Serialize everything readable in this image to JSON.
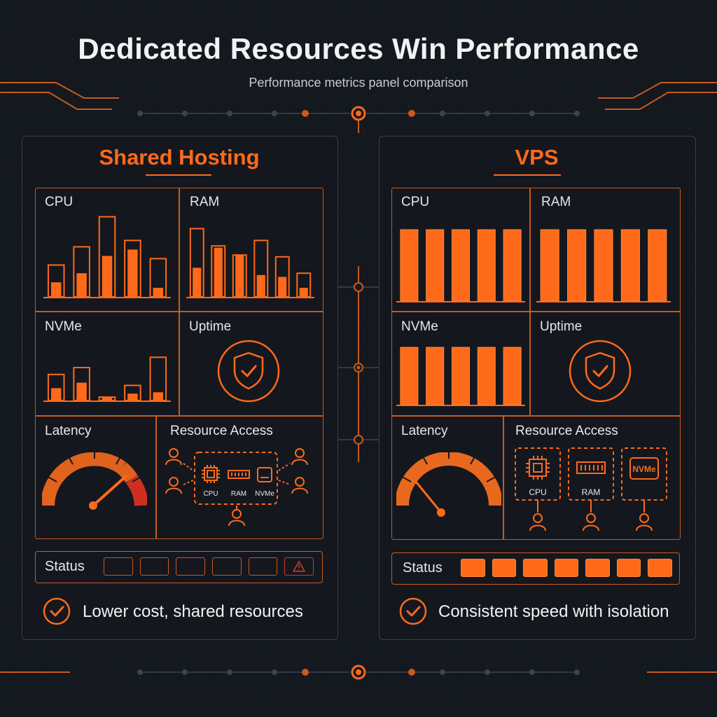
{
  "header": {
    "title": "Dedicated Resources Win Performance",
    "subtitle": "Performance metrics panel comparison"
  },
  "colors": {
    "accent": "#ff6a1a",
    "accent_dark": "#c85a1c",
    "background": "#14181f",
    "alert": "#d63a2a"
  },
  "panels": [
    {
      "title": "Shared Hosting",
      "metrics": {
        "cpu": {
          "label": "CPU",
          "frames": [
            0.35,
            0.55,
            0.88,
            0.62,
            0.42
          ],
          "fills": [
            0.16,
            0.26,
            0.45,
            0.52,
            0.1
          ]
        },
        "ram": {
          "label": "RAM",
          "frames": [
            0.75,
            0.56,
            0.46,
            0.62,
            0.44,
            0.26
          ],
          "fills": [
            0.32,
            0.54,
            0.46,
            0.24,
            0.22,
            0.1
          ]
        },
        "nvme": {
          "label": "NVMe",
          "frames": [
            0.38,
            0.48,
            0.05,
            0.22,
            0.63
          ],
          "fills": [
            0.18,
            0.26,
            0.05,
            0.1,
            0.12
          ]
        },
        "uptime": {
          "label": "Uptime",
          "icon": "shield-check-icon"
        },
        "latency": {
          "label": "Latency",
          "gauge_level": 0.85,
          "gauge_icon": "speedometer-icon"
        },
        "resource_access": {
          "label": "Resource Access",
          "chips": [
            "CPU",
            "RAM",
            "NVMe"
          ],
          "user_icon": "user-icon"
        }
      },
      "status": {
        "label": "Status",
        "slots": [
          "empty",
          "empty",
          "empty",
          "empty",
          "empty",
          "alert"
        ],
        "alert_icon": "warning-icon"
      },
      "caption": "Lower cost, shared resources",
      "caption_icon": "check-circle-icon"
    },
    {
      "title": "VPS",
      "metrics": {
        "cpu": {
          "label": "CPU",
          "bars": [
            1,
            1,
            1,
            1,
            1
          ]
        },
        "ram": {
          "label": "RAM",
          "bars": [
            1,
            1,
            1,
            1,
            1
          ]
        },
        "nvme": {
          "label": "NVMe",
          "bars": [
            1,
            1,
            1,
            1,
            1
          ]
        },
        "uptime": {
          "label": "Uptime",
          "icon": "shield-check-icon"
        },
        "latency": {
          "label": "Latency",
          "gauge_level": 0.15,
          "gauge_icon": "speedometer-icon"
        },
        "resource_access": {
          "label": "Resource Access",
          "chips": [
            "CPU",
            "RAM",
            "NVMe"
          ],
          "user_icon": "user-icon"
        }
      },
      "status": {
        "label": "Status",
        "slots": [
          "filled",
          "filled",
          "filled",
          "filled",
          "filled",
          "filled",
          "filled"
        ]
      },
      "caption": "Consistent speed with isolation",
      "caption_icon": "check-circle-icon"
    }
  ]
}
